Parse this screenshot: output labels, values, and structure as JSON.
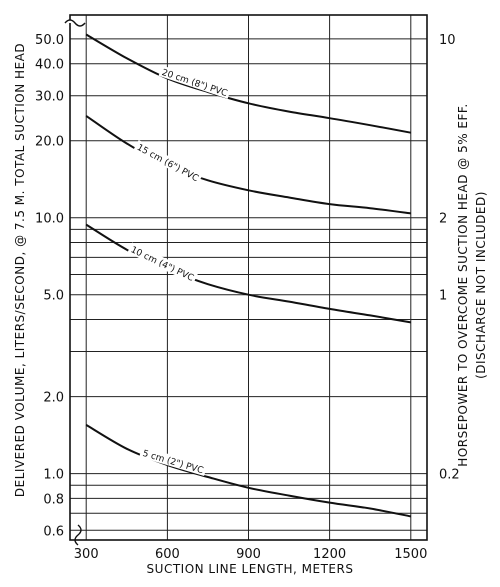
{
  "chart_data": {
    "type": "line",
    "title": "",
    "xlabel": "SUCTION LINE LENGTH, METERS",
    "ylabel": "DELIVERED VOLUME, LITERS/SECOND, @ 7.5 M. TOTAL SUCTION HEAD",
    "y2label": "HORSEPOWER TO OVERCOME SUCTION HEAD @ 5% EFF.",
    "y2label_sub": "(DISCHARGE NOT INCLUDED)",
    "xlim": [
      240,
      1560
    ],
    "ylim": [
      0.55,
      62
    ],
    "y_scale": "log",
    "grid": true,
    "x_ticks": [
      300,
      600,
      900,
      1200,
      1500
    ],
    "x_tick_labels": [
      "300",
      "600",
      "900",
      "1200",
      "1500"
    ],
    "y_ticks": [
      0.6,
      0.8,
      1.0,
      2.0,
      5.0,
      10.0,
      20.0,
      30.0,
      40.0,
      50.0
    ],
    "y_tick_labels": [
      "0.6",
      "0.8",
      "1.0",
      "2.0",
      "5.0",
      "10.0",
      "20.0",
      "30.0",
      "40.0",
      "50.0"
    ],
    "y_gridlines": [
      0.6,
      0.7,
      0.8,
      0.9,
      1.0,
      2.0,
      3.0,
      4.0,
      5.0,
      6.0,
      7.0,
      8.0,
      9.0,
      10.0,
      20.0,
      30.0,
      40.0,
      50.0
    ],
    "y2_ticks": [
      {
        "at": 50.0,
        "label": "10"
      },
      {
        "at": 10.0,
        "label": "2"
      },
      {
        "at": 5.0,
        "label": "1"
      },
      {
        "at": 1.0,
        "label": "0.2"
      }
    ],
    "x": [
      300,
      450,
      600,
      750,
      900,
      1050,
      1200,
      1350,
      1500
    ],
    "series": [
      {
        "name": "20 cm (8\") PVC",
        "values": [
          52,
          42,
          35,
          31,
          28,
          26,
          24.5,
          23,
          21.5
        ]
      },
      {
        "name": "15 cm (6\") PVC",
        "values": [
          25,
          19.5,
          16,
          14,
          12.8,
          12,
          11.3,
          10.9,
          10.4
        ]
      },
      {
        "name": "10 cm (4\") PVC",
        "values": [
          9.4,
          7.5,
          6.3,
          5.5,
          5.0,
          4.7,
          4.4,
          4.15,
          3.9
        ]
      },
      {
        "name": "5 cm (2\") PVC",
        "values": [
          1.55,
          1.25,
          1.08,
          0.97,
          0.88,
          0.82,
          0.77,
          0.73,
          0.68
        ]
      }
    ]
  }
}
